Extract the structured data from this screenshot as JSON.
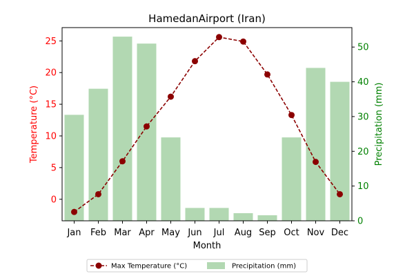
{
  "chart_data": {
    "type": "bar+line",
    "title": "HamedanAirport (Iran)",
    "xlabel": "Month",
    "categories": [
      "Jan",
      "Feb",
      "Mar",
      "Apr",
      "May",
      "Jun",
      "Jul",
      "Aug",
      "Sep",
      "Oct",
      "Nov",
      "Dec"
    ],
    "series": [
      {
        "name": "Max Temperature (°C)",
        "type": "line",
        "axis": "left",
        "color": "#8b0000",
        "values": [
          -2.0,
          0.8,
          6.0,
          11.5,
          16.2,
          21.8,
          25.6,
          24.9,
          19.7,
          13.3,
          5.9,
          0.8
        ]
      },
      {
        "name": "Precipitation (mm)",
        "type": "bar",
        "axis": "right",
        "color": "#b2d8b2",
        "values": [
          30.5,
          38.0,
          53.0,
          51.0,
          24.0,
          3.7,
          3.7,
          2.2,
          1.6,
          24.0,
          44.0,
          40.0
        ]
      }
    ],
    "y_left": {
      "label": "Temperature (°C)",
      "color": "#ff0000",
      "ylim": [
        -3.4,
        27.1
      ],
      "ticks": [
        0,
        5,
        10,
        15,
        20,
        25
      ]
    },
    "y_right": {
      "label": "Precipitation (mm)",
      "color": "#008000",
      "ylim": [
        0,
        55.6
      ],
      "ticks": [
        0,
        10,
        20,
        30,
        40,
        50
      ]
    },
    "grid": false,
    "legend_position": "bottom-center"
  }
}
